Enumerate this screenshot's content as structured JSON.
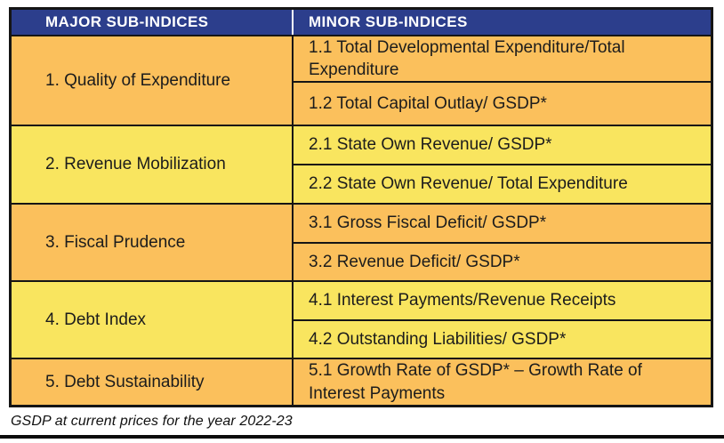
{
  "table": {
    "header": {
      "major": "MAJOR SUB-INDICES",
      "minor": "MINOR SUB-INDICES"
    },
    "rows": [
      {
        "major": "1. Quality of Expenditure",
        "minors": [
          "1.1 Total Developmental Expenditure/Total Expenditure",
          "1.2 Total Capital Outlay/ GSDP*"
        ]
      },
      {
        "major": "2. Revenue Mobilization",
        "minors": [
          "2.1 State Own Revenue/ GSDP*",
          "2.2 State Own Revenue/ Total Expenditure"
        ]
      },
      {
        "major": "3. Fiscal Prudence",
        "minors": [
          "3.1 Gross Fiscal Deficit/ GSDP*",
          "3.2 Revenue Deficit/ GSDP*"
        ]
      },
      {
        "major": "4. Debt Index",
        "minors": [
          "4.1 Interest Payments/Revenue Receipts",
          "4.2 Outstanding Liabilities/ GSDP*"
        ]
      },
      {
        "major": "5. Debt Sustainability",
        "minors": [
          "5.1 Growth Rate of GSDP* – Growth Rate of Interest Payments"
        ]
      }
    ],
    "colors": {
      "header_bg": "#2C3E8C",
      "header_text": "#FFFFFF",
      "row_orange": "#FBC05C",
      "row_yellow": "#F9E55F",
      "border": "#151515",
      "body_text": "#1C1C1C"
    }
  },
  "footnote": "GSDP at current prices for the year 2022-23"
}
